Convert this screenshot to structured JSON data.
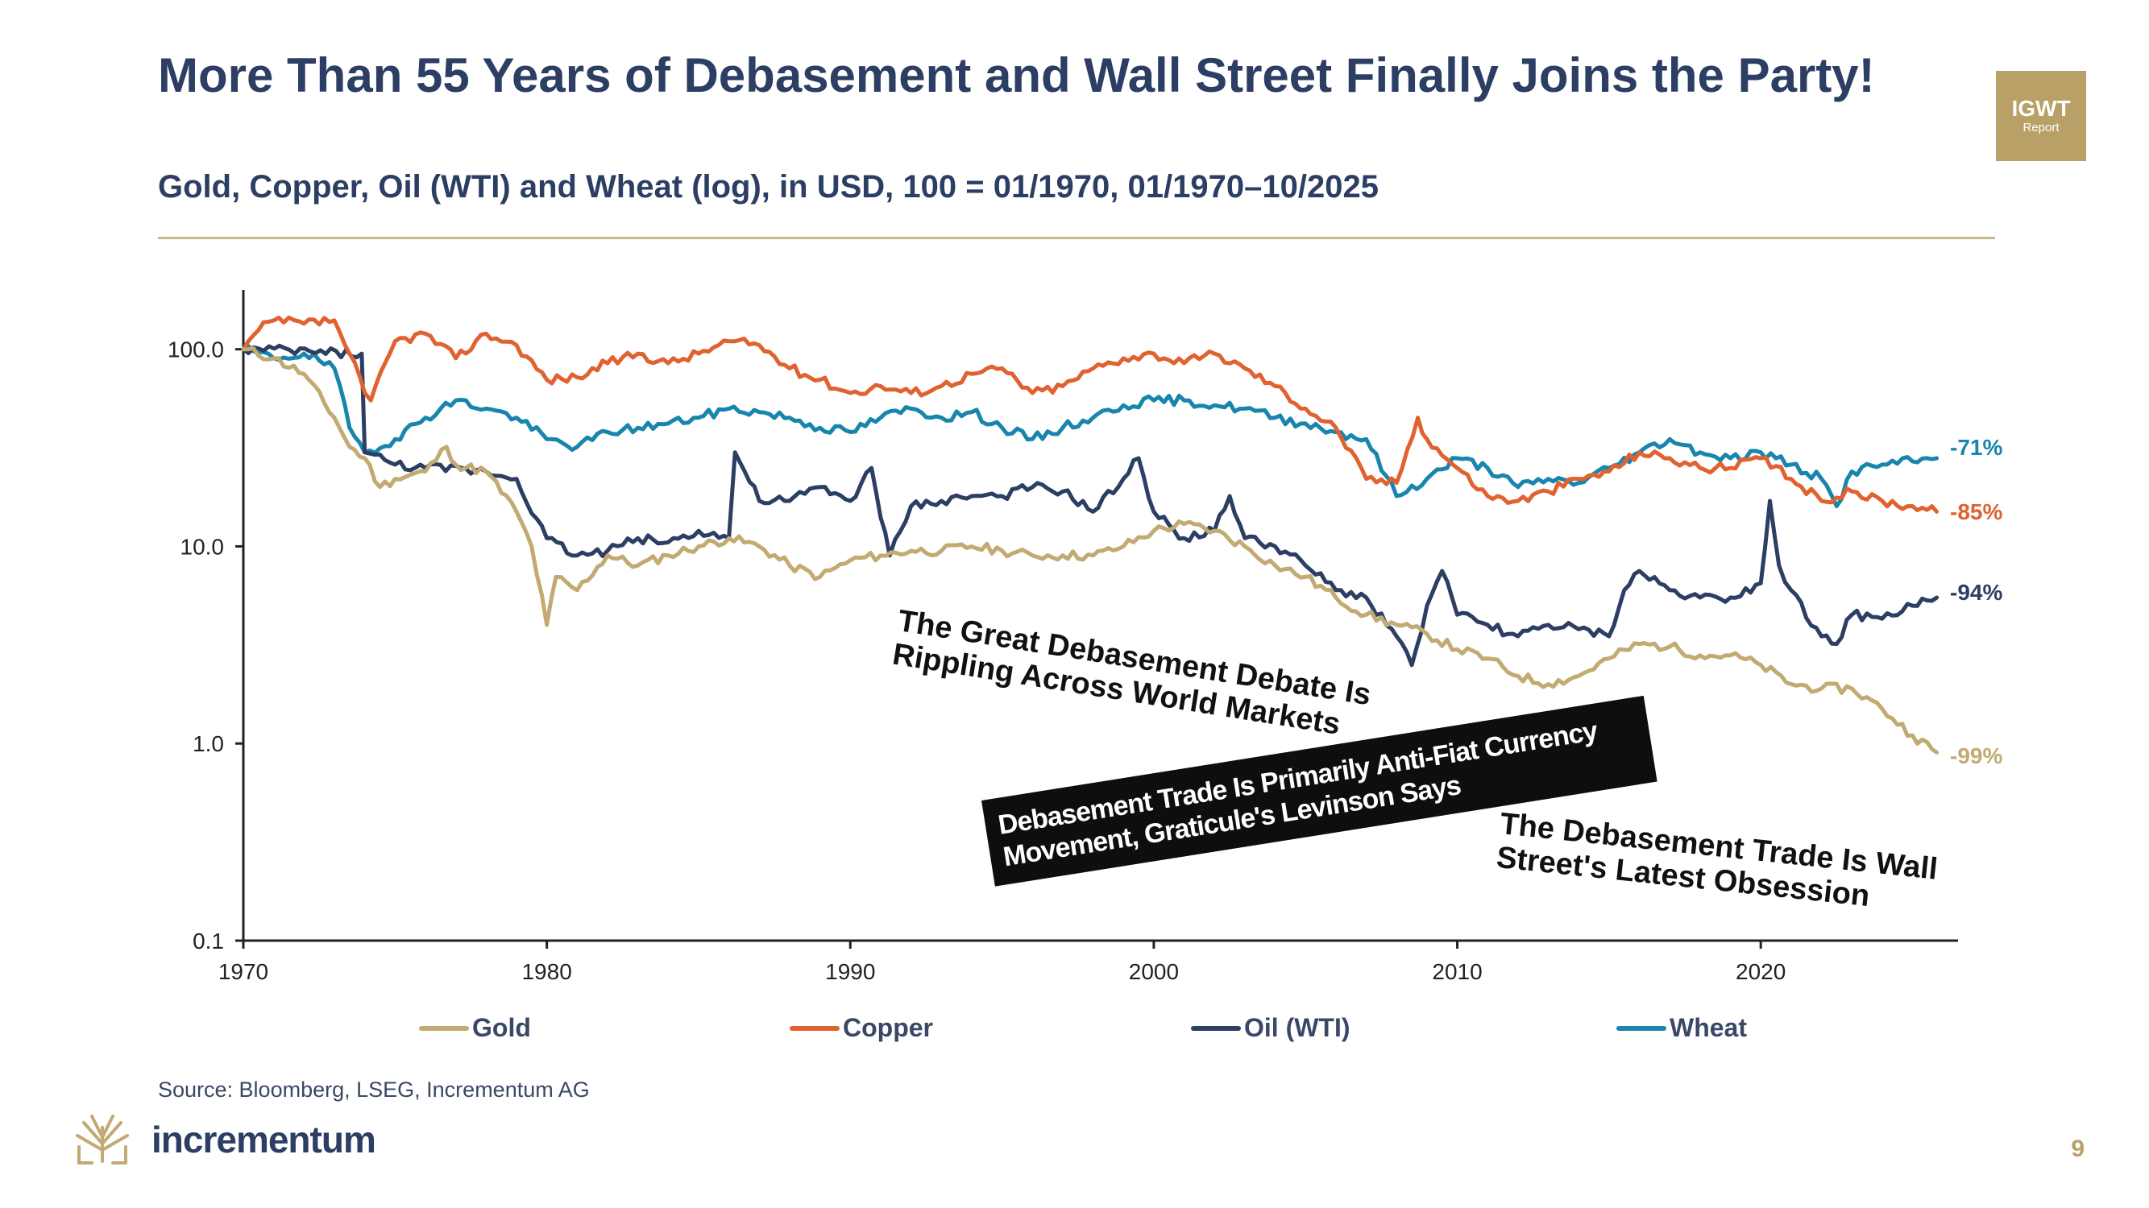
{
  "header": {
    "title": "More Than 55 Years of Debasement and Wall Street Finally Joins the Party!",
    "subtitle": "Gold, Copper, Oil (WTI) and Wheat (log), in USD, 100 = 01/1970, 01/1970–10/2025"
  },
  "badge": {
    "title": "IGWT",
    "sub": "Report"
  },
  "colors": {
    "gold": "#c2aa72",
    "copper": "#e06230",
    "oil": "#2c3e63",
    "wheat": "#1885ad",
    "axis": "#222222"
  },
  "chart_data": {
    "type": "line",
    "title": "Gold, Copper, Oil (WTI) and Wheat (log), in USD, 100 = 01/1970, 01/1970–10/2025",
    "xlabel": "",
    "ylabel": "",
    "y_scale": "log",
    "ylim": [
      0.1,
      200
    ],
    "xlim": [
      1970,
      2026.5
    ],
    "x_ticks": [
      "1970",
      "1980",
      "1990",
      "2000",
      "2010",
      "2020"
    ],
    "y_ticks": [
      "100.0",
      "10.0",
      "1.0",
      "0.1"
    ],
    "y_tick_values": [
      100,
      10,
      1,
      0.1
    ],
    "series": [
      {
        "name": "Gold",
        "key": "gold",
        "end_label": "-99%",
        "points": [
          [
            1970,
            100
          ],
          [
            1971,
            90
          ],
          [
            1972,
            75
          ],
          [
            1973,
            45
          ],
          [
            1973.5,
            32
          ],
          [
            1974,
            28
          ],
          [
            1974.5,
            20
          ],
          [
            1975,
            22
          ],
          [
            1976,
            24
          ],
          [
            1976.7,
            32
          ],
          [
            1977,
            26
          ],
          [
            1978,
            24
          ],
          [
            1979,
            15
          ],
          [
            1979.5,
            10
          ],
          [
            1980,
            4
          ],
          [
            1980.3,
            7
          ],
          [
            1981,
            6
          ],
          [
            1982,
            9
          ],
          [
            1983,
            8
          ],
          [
            1984,
            9
          ],
          [
            1985,
            10
          ],
          [
            1986,
            11
          ],
          [
            1987,
            10
          ],
          [
            1988,
            8
          ],
          [
            1989,
            7
          ],
          [
            1990,
            8.5
          ],
          [
            1991,
            9
          ],
          [
            1992,
            9.5
          ],
          [
            1993,
            9.5
          ],
          [
            1994,
            10
          ],
          [
            1995,
            9.5
          ],
          [
            1996,
            9
          ],
          [
            1997,
            9
          ],
          [
            1998,
            9
          ],
          [
            1999,
            10
          ],
          [
            2000,
            12
          ],
          [
            2001,
            13
          ],
          [
            2002,
            12
          ],
          [
            2003,
            10
          ],
          [
            2004,
            8
          ],
          [
            2005,
            7
          ],
          [
            2006,
            5.5
          ],
          [
            2007,
            4.5
          ],
          [
            2008,
            4
          ],
          [
            2009,
            3.6
          ],
          [
            2010,
            3
          ],
          [
            2011,
            2.7
          ],
          [
            2012,
            2.2
          ],
          [
            2013,
            2
          ],
          [
            2014,
            2.2
          ],
          [
            2015,
            2.7
          ],
          [
            2016,
            3.2
          ],
          [
            2017,
            3.1
          ],
          [
            2018,
            2.8
          ],
          [
            2019,
            2.8
          ],
          [
            2020,
            2.5
          ],
          [
            2021,
            2
          ],
          [
            2022,
            1.9
          ],
          [
            2023,
            1.9
          ],
          [
            2024,
            1.5
          ],
          [
            2025,
            1.1
          ],
          [
            2025.8,
            0.9
          ]
        ]
      },
      {
        "name": "Copper",
        "key": "copper",
        "end_label": "-85%",
        "points": [
          [
            1970,
            100
          ],
          [
            1970.5,
            125
          ],
          [
            1971,
            140
          ],
          [
            1972,
            135
          ],
          [
            1973,
            140
          ],
          [
            1973.5,
            95
          ],
          [
            1974,
            60
          ],
          [
            1974.2,
            55
          ],
          [
            1975,
            110
          ],
          [
            1976,
            120
          ],
          [
            1977,
            90
          ],
          [
            1978,
            120
          ],
          [
            1979,
            105
          ],
          [
            1980,
            70
          ],
          [
            1981,
            72
          ],
          [
            1982,
            85
          ],
          [
            1983,
            95
          ],
          [
            1984,
            85
          ],
          [
            1985,
            95
          ],
          [
            1986,
            110
          ],
          [
            1987,
            105
          ],
          [
            1988,
            80
          ],
          [
            1989,
            70
          ],
          [
            1990,
            60
          ],
          [
            1991,
            65
          ],
          [
            1992,
            60
          ],
          [
            1993,
            65
          ],
          [
            1994,
            75
          ],
          [
            1995,
            80
          ],
          [
            1996,
            60
          ],
          [
            1997,
            65
          ],
          [
            1998,
            80
          ],
          [
            1999,
            90
          ],
          [
            2000,
            95
          ],
          [
            2001,
            85
          ],
          [
            2002,
            95
          ],
          [
            2003,
            80
          ],
          [
            2004,
            65
          ],
          [
            2005,
            50
          ],
          [
            2006,
            40
          ],
          [
            2007,
            22
          ],
          [
            2008,
            21
          ],
          [
            2008.7,
            45
          ],
          [
            2009,
            35
          ],
          [
            2010,
            25
          ],
          [
            2011,
            18
          ],
          [
            2012,
            17
          ],
          [
            2013,
            19
          ],
          [
            2014,
            22
          ],
          [
            2015,
            24
          ],
          [
            2016,
            30
          ],
          [
            2017,
            28
          ],
          [
            2018,
            25
          ],
          [
            2019,
            25
          ],
          [
            2020,
            28
          ],
          [
            2021,
            22
          ],
          [
            2022,
            17
          ],
          [
            2023,
            19
          ],
          [
            2024,
            17
          ],
          [
            2025,
            16
          ],
          [
            2025.8,
            15
          ]
        ]
      },
      {
        "name": "Oil (WTI)",
        "key": "oil",
        "end_label": "-94%",
        "points": [
          [
            1970,
            100
          ],
          [
            1973.9,
            95
          ],
          [
            1974,
            30
          ],
          [
            1975,
            26
          ],
          [
            1976,
            25
          ],
          [
            1978,
            24
          ],
          [
            1979,
            22
          ],
          [
            1980,
            11
          ],
          [
            1981,
            9
          ],
          [
            1982,
            9.5
          ],
          [
            1983,
            11
          ],
          [
            1984,
            10.5
          ],
          [
            1985,
            12
          ],
          [
            1986,
            11
          ],
          [
            1986.2,
            30
          ],
          [
            1987,
            17
          ],
          [
            1988,
            17
          ],
          [
            1989,
            20
          ],
          [
            1990,
            17
          ],
          [
            1990.7,
            25
          ],
          [
            1991,
            14
          ],
          [
            1991.3,
            9
          ],
          [
            1992,
            16
          ],
          [
            1993,
            17
          ],
          [
            1994,
            18
          ],
          [
            1995,
            18
          ],
          [
            1996,
            20
          ],
          [
            1997,
            19
          ],
          [
            1998,
            15
          ],
          [
            1999,
            22
          ],
          [
            1999.5,
            28
          ],
          [
            2000,
            15
          ],
          [
            2001,
            11
          ],
          [
            2002,
            12
          ],
          [
            2002.5,
            18
          ],
          [
            2003,
            11
          ],
          [
            2004,
            10
          ],
          [
            2005,
            8
          ],
          [
            2006,
            6
          ],
          [
            2007,
            5.5
          ],
          [
            2008,
            3.5
          ],
          [
            2008.5,
            2.5
          ],
          [
            2009,
            5
          ],
          [
            2009.5,
            7.5
          ],
          [
            2010,
            4.5
          ],
          [
            2011,
            4
          ],
          [
            2012,
            3.5
          ],
          [
            2013,
            4
          ],
          [
            2014,
            3.8
          ],
          [
            2015,
            3.5
          ],
          [
            2015.5,
            6
          ],
          [
            2016,
            7.5
          ],
          [
            2017,
            6
          ],
          [
            2018,
            5.5
          ],
          [
            2019,
            5.5
          ],
          [
            2020,
            6.5
          ],
          [
            2020.3,
            17
          ],
          [
            2020.6,
            8
          ],
          [
            2021,
            6
          ],
          [
            2022,
            3.5
          ],
          [
            2022.5,
            3.2
          ],
          [
            2023,
            4.5
          ],
          [
            2024,
            4.3
          ],
          [
            2025,
            5
          ],
          [
            2025.8,
            5.5
          ]
        ]
      },
      {
        "name": "Wheat",
        "key": "wheat",
        "end_label": "-71%",
        "points": [
          [
            1970,
            100
          ],
          [
            1971,
            90
          ],
          [
            1972,
            95
          ],
          [
            1973,
            80
          ],
          [
            1973.5,
            40
          ],
          [
            1974,
            30
          ],
          [
            1975,
            35
          ],
          [
            1976,
            45
          ],
          [
            1977,
            55
          ],
          [
            1978,
            50
          ],
          [
            1979,
            45
          ],
          [
            1980,
            35
          ],
          [
            1981,
            32
          ],
          [
            1982,
            38
          ],
          [
            1983,
            40
          ],
          [
            1984,
            42
          ],
          [
            1985,
            45
          ],
          [
            1986,
            50
          ],
          [
            1987,
            48
          ],
          [
            1988,
            45
          ],
          [
            1989,
            40
          ],
          [
            1990,
            38
          ],
          [
            1991,
            45
          ],
          [
            1992,
            50
          ],
          [
            1993,
            45
          ],
          [
            1994,
            48
          ],
          [
            1995,
            40
          ],
          [
            1996,
            35
          ],
          [
            1997,
            40
          ],
          [
            1998,
            45
          ],
          [
            1999,
            52
          ],
          [
            2000,
            55
          ],
          [
            2001,
            55
          ],
          [
            2002,
            52
          ],
          [
            2003,
            50
          ],
          [
            2004,
            45
          ],
          [
            2005,
            42
          ],
          [
            2006,
            38
          ],
          [
            2007,
            35
          ],
          [
            2008,
            18
          ],
          [
            2009,
            22
          ],
          [
            2010,
            28
          ],
          [
            2011,
            25
          ],
          [
            2012,
            20
          ],
          [
            2013,
            22
          ],
          [
            2014,
            21
          ],
          [
            2015,
            25
          ],
          [
            2016,
            30
          ],
          [
            2017,
            35
          ],
          [
            2018,
            30
          ],
          [
            2019,
            28
          ],
          [
            2020,
            30
          ],
          [
            2021,
            26
          ],
          [
            2022,
            22
          ],
          [
            2022.5,
            16
          ],
          [
            2023,
            24
          ],
          [
            2024,
            26
          ],
          [
            2025,
            27
          ],
          [
            2025.8,
            28
          ]
        ]
      }
    ]
  },
  "headlines": [
    "The Great Debasement Debate Is Rippling Across World Markets",
    "Debasement Trade Is Primarily Anti-Fiat Currency Movement, Graticule's Levinson Says",
    "The Debasement Trade Is Wall Street's Latest Obsession"
  ],
  "legend": [
    "Gold",
    "Copper",
    "Oil (WTI)",
    "Wheat"
  ],
  "footer": {
    "source": "Source: Bloomberg, LSEG, Incrementum AG",
    "logo": "incrementum",
    "page": "9"
  }
}
